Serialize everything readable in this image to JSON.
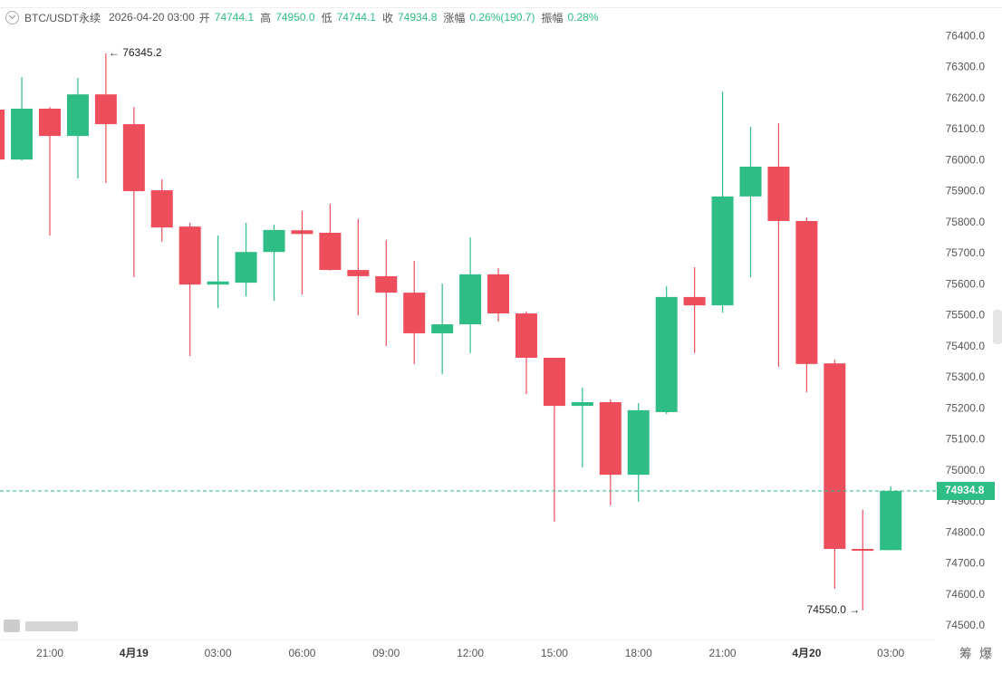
{
  "header": {
    "symbol": "BTC/USDT永续",
    "datetime": "2026-04-20 03:00",
    "fields": [
      {
        "label": "开",
        "value": "74744.1"
      },
      {
        "label": "高",
        "value": "74950.0"
      },
      {
        "label": "低",
        "value": "74744.1"
      },
      {
        "label": "收",
        "value": "74934.8"
      },
      {
        "label": "涨幅",
        "value": "0.26%(190.7)"
      },
      {
        "label": "振幅",
        "value": "0.28%"
      }
    ]
  },
  "chart_data": {
    "type": "candlestick",
    "categories": [
      null,
      null,
      "21:00",
      null,
      null,
      "4月19",
      null,
      null,
      "03:00",
      null,
      null,
      "06:00",
      null,
      null,
      "09:00",
      null,
      null,
      "12:00",
      null,
      null,
      "15:00",
      null,
      null,
      "18:00",
      null,
      null,
      "21:00",
      null,
      null,
      "4月20",
      null,
      null,
      "03:00"
    ],
    "open": [
      76164,
      76003,
      76167,
      76079,
      76213,
      76117,
      75904,
      75787,
      75600,
      75606,
      75705,
      75775,
      75767,
      75647,
      75627,
      75574,
      75443,
      75472,
      75633,
      75507,
      75364,
      75209,
      75221,
      74987,
      75189,
      75560,
      75533,
      75884,
      75980,
      75805,
      75346,
      74748,
      74744.1
    ],
    "high": [
      76190,
      76269,
      76172,
      76266,
      76345.2,
      76172,
      75939,
      75799,
      75758,
      75799,
      75793,
      75837,
      75860,
      75811,
      75743,
      75676,
      75603,
      75752,
      75653,
      75513,
      75364,
      75268,
      75230,
      75218,
      75595,
      75656,
      76222,
      76108,
      76120,
      75816,
      75358,
      74874,
      74950.0
    ],
    "low": [
      75980,
      76000,
      75758,
      75942,
      75927,
      75624,
      75738,
      75370,
      75524,
      75562,
      75548,
      75568,
      75645,
      75501,
      75402,
      75344,
      75311,
      75379,
      75481,
      75247,
      74836,
      75011,
      74888,
      74900,
      75183,
      75379,
      75510,
      75624,
      75335,
      75253,
      74620,
      74550.0,
      74744.1
    ],
    "close": [
      76003,
      76167,
      76079,
      76213,
      76117,
      75901,
      75784,
      75600,
      75610,
      75705,
      75776,
      75763,
      75647,
      75627,
      75574,
      75443,
      75472,
      75633,
      75507,
      75364,
      75209,
      75221,
      74987,
      75195,
      75560,
      75533,
      75884,
      75980,
      75805,
      75344,
      74748,
      74742,
      74934.8
    ],
    "up_color": "#2ebd85",
    "down_color": "#ee4d5b",
    "ylim": [
      74459,
      76488
    ],
    "yticks": [
      {
        "value": 74500,
        "label": "74500.0"
      },
      {
        "value": 74600,
        "label": "74600.0"
      },
      {
        "value": 74700,
        "label": "74700.0"
      },
      {
        "value": 74800,
        "label": "74800.0"
      },
      {
        "value": 74900,
        "label": "74900.0"
      },
      {
        "value": 75000,
        "label": "75000.0"
      },
      {
        "value": 75100,
        "label": "75100.0"
      },
      {
        "value": 75200,
        "label": "75200.0"
      },
      {
        "value": 75300,
        "label": "75300.0"
      },
      {
        "value": 75400,
        "label": "75400.0"
      },
      {
        "value": 75500,
        "label": "75500.0"
      },
      {
        "value": 75600,
        "label": "75600.0"
      },
      {
        "value": 75700,
        "label": "75700.0"
      },
      {
        "value": 75800,
        "label": "75800.0"
      },
      {
        "value": 75900,
        "label": "75900.0"
      },
      {
        "value": 76000,
        "label": "76000.0"
      },
      {
        "value": 76100,
        "label": "76100.0"
      },
      {
        "value": 76200,
        "label": "76200.0"
      },
      {
        "value": 76300,
        "label": "76300.0"
      },
      {
        "value": 76400,
        "label": "76400.0"
      }
    ],
    "last_price": 74934.8,
    "annotations": [
      {
        "text": "← 76345.2"
      },
      {
        "text": "74550.0 →"
      }
    ]
  },
  "toolbar": {
    "buttons": [
      "筹",
      "爆"
    ]
  }
}
